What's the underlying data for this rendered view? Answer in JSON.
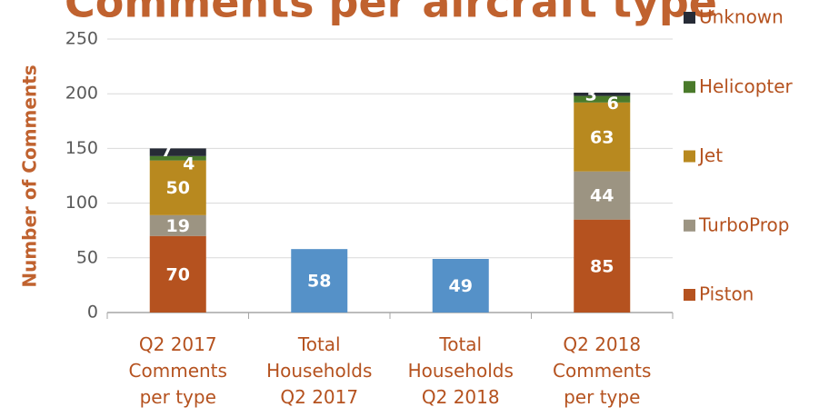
{
  "chart_data": {
    "type": "bar",
    "stacked": true,
    "title": "Comments per aircraft type",
    "y_label": "Number of Comments",
    "categories": [
      "Q2 2017\nComments\nper type",
      "Total\nHouseholds\nQ2 2017",
      "Total\nHouseholds\nQ2 2018",
      "Q2 2018\nComments\nper type"
    ],
    "series": [
      {
        "name": "Piston",
        "color": "#b5521f",
        "values": [
          70,
          null,
          null,
          85
        ]
      },
      {
        "name": "TurboProp",
        "color": "#9c9482",
        "values": [
          19,
          null,
          null,
          44
        ]
      },
      {
        "name": "Jet",
        "color": "#b8891f",
        "values": [
          50,
          null,
          null,
          63
        ]
      },
      {
        "name": "Helicopter",
        "color": "#4a7a2a",
        "values": [
          4,
          null,
          null,
          6
        ]
      },
      {
        "name": "Unknown",
        "color": "#262b36",
        "values": [
          7,
          null,
          null,
          3
        ]
      },
      {
        "color": "#5591c8",
        "values": [
          null,
          58,
          49,
          null
        ]
      }
    ],
    "ylim": [
      0,
      250
    ],
    "yticks": [
      0,
      50,
      100,
      150,
      200,
      250
    ],
    "grid": true,
    "legend": "right"
  }
}
